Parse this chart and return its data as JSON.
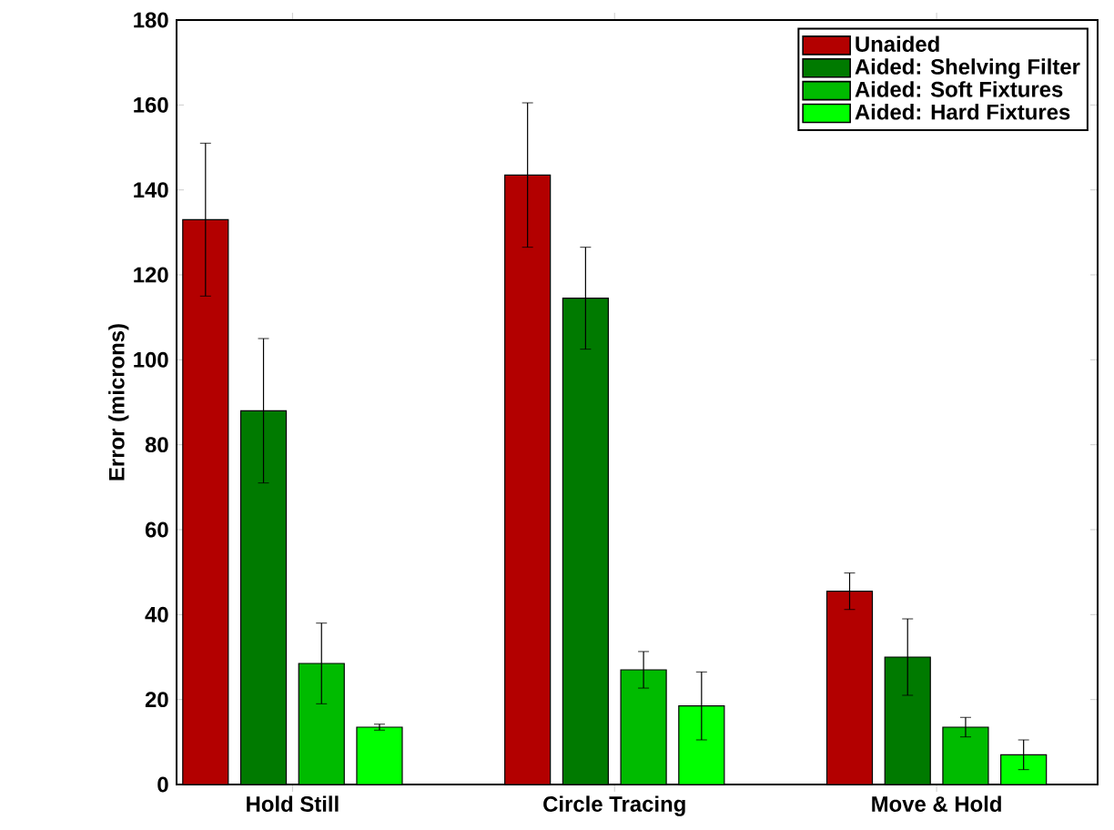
{
  "chart_data": {
    "type": "bar",
    "ylabel": "Error (microns)",
    "categories": [
      "Hold Still",
      "Circle Tracing",
      "Move & Hold"
    ],
    "series": [
      {
        "name": "Unaided",
        "color": "#b30000",
        "values": [
          133,
          143.5,
          45.5
        ],
        "errors": [
          18,
          17,
          4.3
        ]
      },
      {
        "name": "Aided: Shelving Filter",
        "color": "#007a00",
        "values": [
          88,
          114.5,
          30
        ],
        "errors": [
          17,
          12,
          9
        ]
      },
      {
        "name": "Aided: Soft Fixtures",
        "color": "#00bb00",
        "values": [
          28.5,
          27,
          13.5
        ],
        "errors": [
          9.5,
          4.3,
          2.3
        ]
      },
      {
        "name": "Aided: Hard Fixtures",
        "color": "#00ff00",
        "values": [
          13.5,
          18.5,
          7
        ],
        "errors": [
          0.7,
          8,
          3.5
        ]
      }
    ],
    "ylim": [
      0,
      180
    ],
    "yticks": [
      0,
      20,
      40,
      60,
      80,
      100,
      120,
      140,
      160,
      180
    ],
    "grid": false,
    "legend": "top right"
  }
}
